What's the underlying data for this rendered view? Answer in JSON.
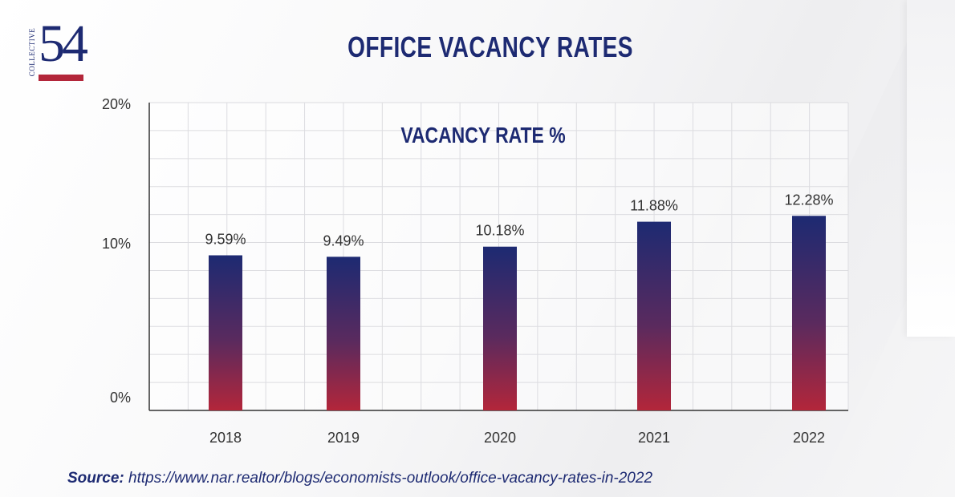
{
  "logo": {
    "number": "54",
    "word": "COLLECTIVE"
  },
  "title": "OFFICE VACANCY RATES",
  "source": {
    "label": "Source:",
    "url": "https://www.nar.realtor/blogs/economists-outlook/office-vacancy-rates-in-2022"
  },
  "colors": {
    "navy": "#1d2a72",
    "red": "#b3263a",
    "grid": "#dcdce0"
  },
  "chart_data": {
    "type": "bar",
    "title": "VACANCY RATE %",
    "categories": [
      "2018",
      "2019",
      "2020",
      "2021",
      "2022"
    ],
    "values": [
      9.59,
      9.49,
      10.18,
      11.88,
      12.28
    ],
    "value_labels": [
      "9.59%",
      "9.49%",
      "10.18%",
      "11.88%",
      "12.28%"
    ],
    "y_ticks": [
      0,
      10,
      20
    ],
    "y_tick_labels": [
      "0%",
      "10%",
      "20%"
    ],
    "ylim": [
      0,
      20
    ],
    "grid": true,
    "xlabel": "",
    "ylabel": ""
  }
}
